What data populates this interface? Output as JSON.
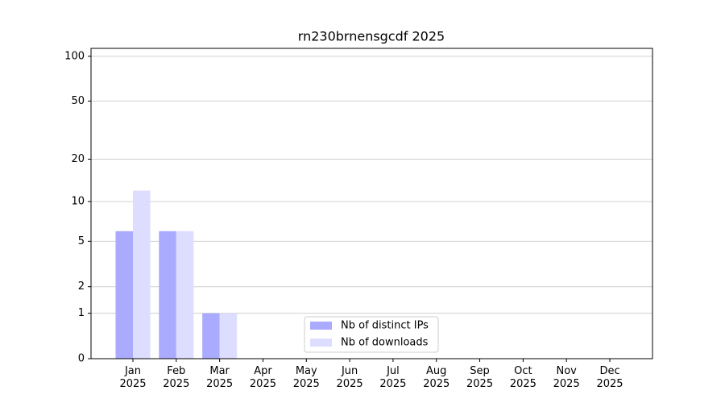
{
  "chart_data": {
    "type": "bar",
    "title": "rn230brnensgcdf 2025",
    "categories": [
      "Jan\n2025",
      "Feb\n2025",
      "Mar\n2025",
      "Apr\n2025",
      "May\n2025",
      "Jun\n2025",
      "Jul\n2025",
      "Aug\n2025",
      "Sep\n2025",
      "Oct\n2025",
      "Nov\n2025",
      "Dec\n2025"
    ],
    "series": [
      {
        "name": "Nb of distinct IPs",
        "color": "#aaaaff",
        "values": [
          6,
          6,
          1,
          0,
          0,
          0,
          0,
          0,
          0,
          0,
          0,
          0
        ]
      },
      {
        "name": "Nb of downloads",
        "color": "#ddddff",
        "values": [
          12,
          6,
          1,
          0,
          0,
          0,
          0,
          0,
          0,
          0,
          0,
          0
        ]
      }
    ],
    "yscale": "log1p",
    "ylim": [
      0,
      113
    ],
    "yticks": [
      0,
      1,
      2,
      5,
      10,
      20,
      50,
      100
    ],
    "grid": true,
    "legend": "lower center"
  }
}
